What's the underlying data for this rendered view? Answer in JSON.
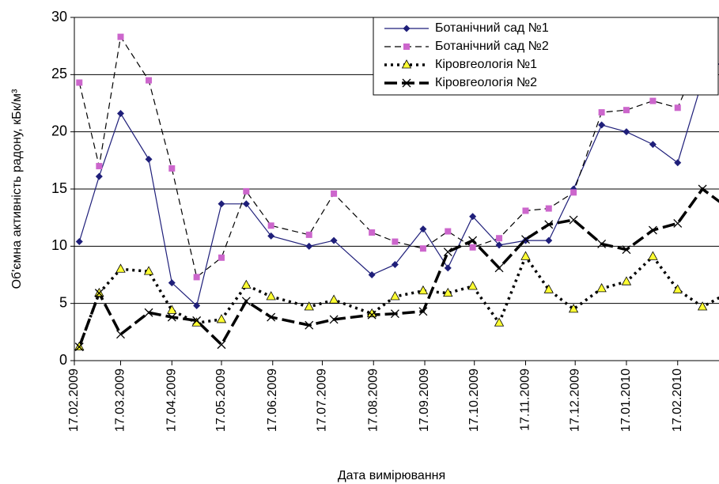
{
  "chart_data": {
    "type": "line",
    "y_label": "Об'ємна активність радону, кБк/м³",
    "x_label": "Дата вимірювання",
    "x": [
      "20.02.2009",
      "04.03.2009",
      "17.03.2009",
      "03.04.2009",
      "17.04.2009",
      "02.05.2009",
      "17.05.2009",
      "01.06.2009",
      "16.06.2009",
      "09.07.2009",
      "24.07.2009",
      "16.08.2009",
      "30.08.2009",
      "16.09.2009",
      "01.10.2009",
      "16.10.2009",
      "01.11.2009",
      "17.11.2009",
      "01.12.2009",
      "16.12.2009",
      "02.01.2010",
      "17.01.2010",
      "02.02.2010",
      "17.02.2010",
      "04.03.2010",
      "18.03.2010"
    ],
    "series": [
      {
        "name": "Ботанічний сад №1",
        "color": "#1f1f7a",
        "marker_color": "#1f1f7a",
        "marker": "diamond",
        "dash": "solid",
        "values": [
          10.4,
          16.1,
          21.6,
          17.6,
          6.8,
          4.8,
          13.7,
          13.7,
          10.9,
          10.0,
          10.5,
          7.5,
          8.4,
          11.5,
          8.1,
          12.6,
          10.1,
          10.5,
          10.5,
          15.0,
          20.6,
          20.0,
          18.9,
          17.3,
          24.5,
          26.5
        ]
      },
      {
        "name": "Ботанічний сад №2",
        "color": "#000000",
        "marker_color": "#cc66cc",
        "marker": "square",
        "dash": "dashed",
        "values": [
          24.3,
          17.0,
          28.3,
          24.5,
          16.8,
          7.3,
          9.0,
          14.8,
          11.8,
          11.0,
          14.6,
          11.2,
          10.4,
          9.8,
          11.3,
          9.9,
          10.7,
          13.1,
          13.3,
          14.7,
          21.7,
          21.9,
          22.7,
          22.1,
          27.1,
          27.4
        ]
      },
      {
        "name": "Кіровгеологія №1",
        "color": "#000000",
        "marker_color": "#ffff33",
        "marker": "triangle",
        "dash": "dotted",
        "values": [
          1.2,
          5.9,
          8.0,
          7.8,
          4.4,
          3.3,
          3.6,
          6.6,
          5.6,
          4.7,
          5.3,
          4.1,
          5.6,
          6.1,
          5.9,
          6.5,
          3.3,
          9.1,
          6.2,
          4.5,
          6.3,
          6.9,
          9.1,
          6.2,
          4.7,
          5.8
        ]
      },
      {
        "name": "Кіровгеологія №2",
        "color": "#000000",
        "marker_color": "#000000",
        "marker": "cross",
        "dash": "longdash",
        "values": [
          1.2,
          5.9,
          2.3,
          4.2,
          3.8,
          3.5,
          1.4,
          5.2,
          3.8,
          3.1,
          3.6,
          4.0,
          4.1,
          4.3,
          9.5,
          10.5,
          8.1,
          10.6,
          11.9,
          12.3,
          10.2,
          9.7,
          11.4,
          12.0,
          15.0,
          13.5
        ]
      }
    ],
    "xlim": [
      "17.02.2009",
      "14.03.2010"
    ],
    "xticks": [
      "17.02.2009",
      "17.03.2009",
      "17.04.2009",
      "17.05.2009",
      "17.06.2009",
      "17.07.2009",
      "17.08.2009",
      "17.09.2009",
      "17.10.2009",
      "17.11.2009",
      "17.12.2009",
      "17.01.2010",
      "17.02.2010"
    ],
    "ylim": [
      0,
      30
    ],
    "yticks": [
      0,
      5,
      10,
      15,
      20,
      25,
      30
    ],
    "grid": true,
    "legend": "top-right"
  }
}
